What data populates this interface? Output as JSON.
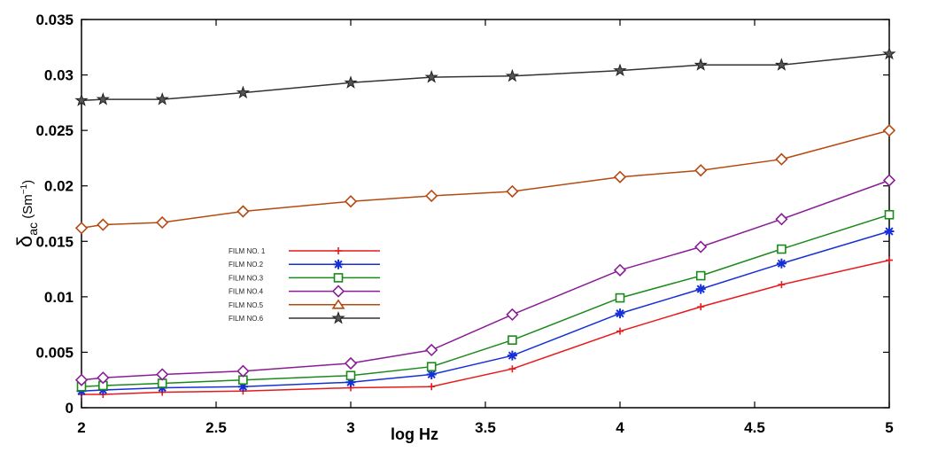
{
  "chart_data": {
    "type": "line",
    "xlabel": "log Hz",
    "ylabel": {
      "symbol": "δ",
      "subscript": "ac",
      "unit_open": " (Sm",
      "unit_sup": "−1",
      "unit_close": ")"
    },
    "xlim": [
      2,
      5
    ],
    "ylim": [
      0,
      0.035
    ],
    "x_ticks": [
      2,
      2.5,
      3,
      3.5,
      4,
      4.5,
      5
    ],
    "x_tick_labels": [
      "2",
      "2.5",
      "3",
      "3.5",
      "4",
      "4.5",
      "5"
    ],
    "y_ticks": [
      0,
      0.005,
      0.01,
      0.015,
      0.02,
      0.025,
      0.03,
      0.035
    ],
    "y_tick_labels": [
      "0",
      "0.005",
      "0.01",
      "0.015",
      "0.02",
      "0.025",
      "0.03",
      "0.035"
    ],
    "grid": false,
    "legend_position": "center-left",
    "x": [
      2,
      2.08,
      2.3,
      2.6,
      3,
      3.3,
      3.6,
      4,
      4.3,
      4.6,
      5
    ],
    "series": [
      {
        "name": "FILM NO. 1",
        "color": "#e8191c",
        "marker": "plus",
        "values": [
          0.0012,
          0.0012,
          0.0014,
          0.0015,
          0.0018,
          0.0019,
          0.0035,
          0.0069,
          0.0091,
          0.0111,
          0.0133
        ]
      },
      {
        "name": "FILM NO.2",
        "color": "#1630d8",
        "marker": "asterisk",
        "values": [
          0.0015,
          0.0016,
          0.0018,
          0.0019,
          0.0023,
          0.003,
          0.0047,
          0.0085,
          0.0107,
          0.013,
          0.0159
        ]
      },
      {
        "name": "FILM NO.3",
        "color": "#1a8a1a",
        "marker": "square",
        "values": [
          0.0019,
          0.002,
          0.0022,
          0.0025,
          0.0029,
          0.0037,
          0.0061,
          0.0099,
          0.0119,
          0.0143,
          0.0174
        ]
      },
      {
        "name": "FILM NO.4",
        "color": "#8a1d96",
        "marker": "diamond",
        "values": [
          0.0025,
          0.0027,
          0.003,
          0.0033,
          0.004,
          0.0052,
          0.0084,
          0.0124,
          0.0145,
          0.017,
          0.0205
        ]
      },
      {
        "name": "FILM NO.5",
        "color": "#b44a10",
        "marker": "diamond",
        "legend_marker": "triangle",
        "values": [
          0.0162,
          0.0165,
          0.0167,
          0.0177,
          0.0186,
          0.0191,
          0.0195,
          0.0208,
          0.0214,
          0.0224,
          0.025
        ]
      },
      {
        "name": "FILM NO.6",
        "color": "#333333",
        "marker": "star",
        "values": [
          0.0277,
          0.0278,
          0.0278,
          0.0284,
          0.0293,
          0.0298,
          0.0299,
          0.0304,
          0.0309,
          0.0309,
          0.0319
        ]
      }
    ]
  }
}
